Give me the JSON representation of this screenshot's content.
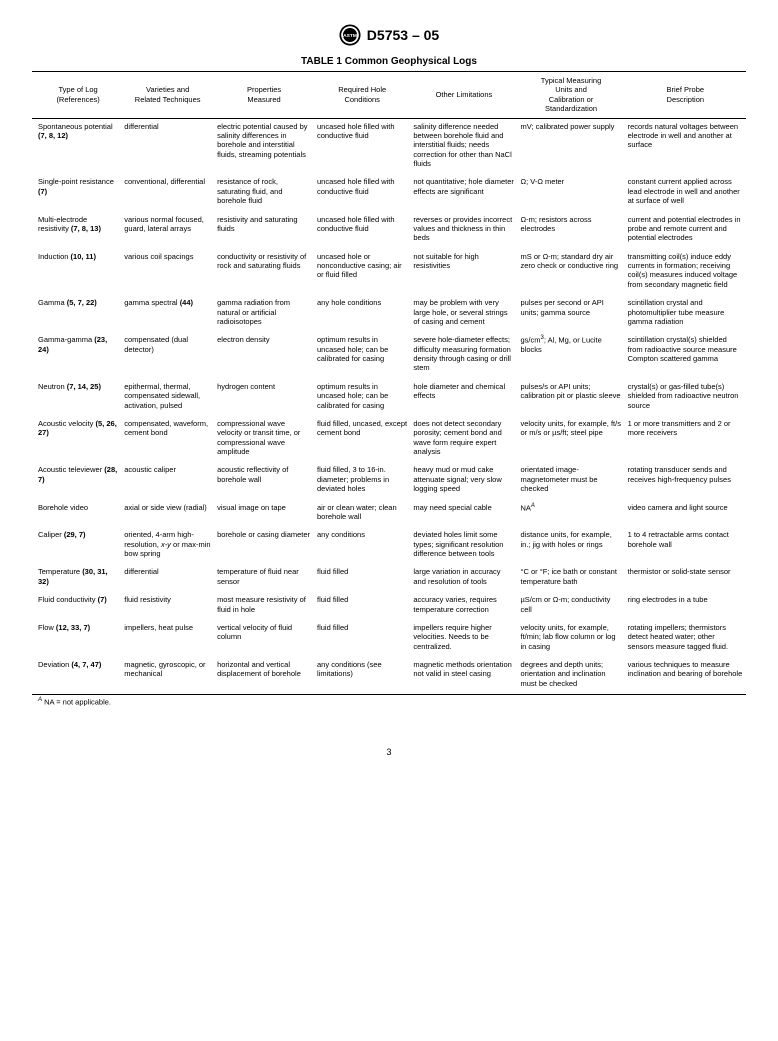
{
  "doc_id": "D5753 – 05",
  "table_title": "TABLE 1  Common Geophysical Logs",
  "columns": [
    "Type of Log\n(References)",
    "Varieties and\nRelated Techniques",
    "Properties\nMeasured",
    "Required Hole\nConditions",
    "Other Limitations",
    "Typical Measuring\nUnits and\nCalibration or\nStandardization",
    "Brief Probe\nDescription"
  ],
  "rows": [
    {
      "c0a": "Spontaneous potential ",
      "c0b": "(7, 8, 12)",
      "c1": "differential",
      "c2": "electric potential caused by salinity differences in borehole and interstitial fluids, streaming potentials",
      "c3": "uncased hole filled with conductive fluid",
      "c4": "salinity difference needed between borehole fluid and interstitial fluids; needs correction for other than NaCl fluids",
      "c5": "mV; calibrated power supply",
      "c6": "records natural voltages between electrode in well and another at surface"
    },
    {
      "c0a": "Single-point resistance ",
      "c0b": "(7)",
      "c1": "conventional, differential",
      "c2": "resistance of rock, saturating fluid, and borehole fluid",
      "c3": "uncased hole filled with conductive fluid",
      "c4": "not quantitative; hole diameter effects are significant",
      "c5": "Ω; V-Ω meter",
      "c6": "constant current applied across lead electrode in well and another at surface of well"
    },
    {
      "c0a": "Multi-electrode resistivity ",
      "c0b": "(7, 8, 13)",
      "c1": "various normal focused, guard, lateral arrays",
      "c2": "resistivity and saturating fluids",
      "c3": "uncased hole filled with conductive fluid",
      "c4": "reverses or provides incorrect values and thickness in thin beds",
      "c5": "Ω-m; resistors across electrodes",
      "c6": "current and potential electrodes in probe and remote current and potential electrodes"
    },
    {
      "c0a": "Induction ",
      "c0b": "(10, 11)",
      "c1": "various coil spacings",
      "c2": "conductivity or resistivity of rock and saturating fluids",
      "c3": "uncased hole or nonconductive casing; air or fluid filled",
      "c4": "not suitable for high resistivities",
      "c5": "mS or Ω-m; standard dry air zero check or conductive ring",
      "c6": "transmitting coil(s) induce eddy currents in formation; receiving coil(s) measures induced voltage from secondary magnetic field"
    },
    {
      "c0a": "Gamma ",
      "c0b": "(5, 7, 22)",
      "c1a": "gamma spectral ",
      "c1b": "(44)",
      "c2": "gamma radiation from natural or artificial radioisotopes",
      "c3": "any hole conditions",
      "c4": "may be problem with very large hole, or several strings of casing and cement",
      "c5": "pulses per second or API units; gamma source",
      "c6": "scintillation crystal and photomultiplier tube measure gamma radiation"
    },
    {
      "c0a": "Gamma-gamma ",
      "c0b": "(23, 24)",
      "c1": "compensated (dual detector)",
      "c2": "electron density",
      "c3": "optimum results in uncased hole; can be calibrated for casing",
      "c4": "severe hole-diameter effects; difficulty measuring formation density through casing or drill stem",
      "c5html": "gs/cm<sup>3</sup>; Al, Mg, or Lucite blocks",
      "c6": "scintillation crystal(s) shielded from radioactive source measure Compton scattered gamma"
    },
    {
      "c0a": "Neutron ",
      "c0b": "(7, 14, 25)",
      "c1": "epithermal, thermal, compensated sidewall, activation, pulsed",
      "c2": "hydrogen content",
      "c3": "optimum results in uncased hole; can be calibrated for casing",
      "c4": "hole diameter and chemical effects",
      "c5": "pulses/s or API units; calibration pit or plastic sleeve",
      "c6": "crystal(s) or gas-filled tube(s) shielded from radioactive neutron source"
    },
    {
      "c0a": "Acoustic velocity ",
      "c0b": "(5, 26, 27)",
      "c1": "compensated, waveform, cement bond",
      "c2": "compressional wave velocity or transit time, or compressional wave amplitude",
      "c3": "fluid filled, uncased, except cement bond",
      "c4": "does not detect secondary porosity; cement bond and wave form require expert analysis",
      "c5": "velocity units, for example, ft/s or m/s or µs/ft; steel pipe",
      "c6": "1 or more transmitters and 2 or more receivers"
    },
    {
      "c0a": "Acoustic televiewer ",
      "c0b": "(28, 7)",
      "c1": "acoustic caliper",
      "c2": "acoustic reflectivity of borehole wall",
      "c3": "fluid filled, 3 to 16-in. diameter; problems in deviated holes",
      "c4": "heavy mud or mud cake attenuate signal; very slow logging speed",
      "c5": "orientated image-magnetometer must be checked",
      "c6": "rotating transducer sends and receives high-frequency pulses"
    },
    {
      "c0a": "Borehole video",
      "c0b": "",
      "c1": "axial or side view (radial)",
      "c2": "visual image on tape",
      "c3": "air or clean water; clean borehole wall",
      "c4": "may need special cable",
      "c5html": "NA<sup><i>A</i></sup>",
      "c6": "video camera and light source"
    },
    {
      "c0a": "Caliper ",
      "c0b": "(29, 7)",
      "c1html": "oriented, 4-arm high-resolution, <i>x-y</i> or max-min bow spring",
      "c2": "borehole or casing diameter",
      "c3": "any conditions",
      "c4": "deviated holes limit some types; significant resolution difference between tools",
      "c5": "distance units, for example, in.; jig with holes or rings",
      "c6": "1 to 4 retractable arms contact borehole wall"
    },
    {
      "c0a": "Temperature ",
      "c0b": "(30, 31, 32)",
      "c1": "differential",
      "c2": "temperature of fluid near sensor",
      "c3": "fluid filled",
      "c4": "large variation in accuracy and resolution of tools",
      "c5": "°C or °F; ice bath or constant temperature bath",
      "c6": "thermistor or solid-state sensor"
    },
    {
      "c0a": "Fluid conductivity ",
      "c0b": "(7)",
      "c1": "fluid resistivity",
      "c2": "most measure resistivity of fluid in hole",
      "c3": "fluid filled",
      "c4": "accuracy varies, requires temperature correction",
      "c5": "µS/cm or Ω-m; conductivity cell",
      "c6": "ring electrodes in a tube"
    },
    {
      "c0a": "Flow ",
      "c0b": "(12, 33, 7)",
      "c1": "impellers, heat pulse",
      "c2": "vertical velocity of fluid column",
      "c3": "fluid filled",
      "c4": "impellers require higher velocities. Needs to be centralized.",
      "c5": "velocity units, for example, ft/min; lab flow column or log in casing",
      "c6": "rotating impellers; thermistors detect heated water; other sensors measure tagged fluid."
    },
    {
      "c0a": "Deviation ",
      "c0b": "(4, 7, 47)",
      "c1": "magnetic, gyroscopic, or mechanical",
      "c2": "horizontal and vertical displacement of borehole",
      "c3": "any conditions (see limitations)",
      "c4": "magnetic methods orientation not valid in steel casing",
      "c5": "degrees and depth units; orientation and inclination must be checked",
      "c6": "various techniques to measure inclination and bearing of borehole"
    }
  ],
  "footnote_sup": "A",
  "footnote_text": " NA = not applicable.",
  "page_num": "3"
}
